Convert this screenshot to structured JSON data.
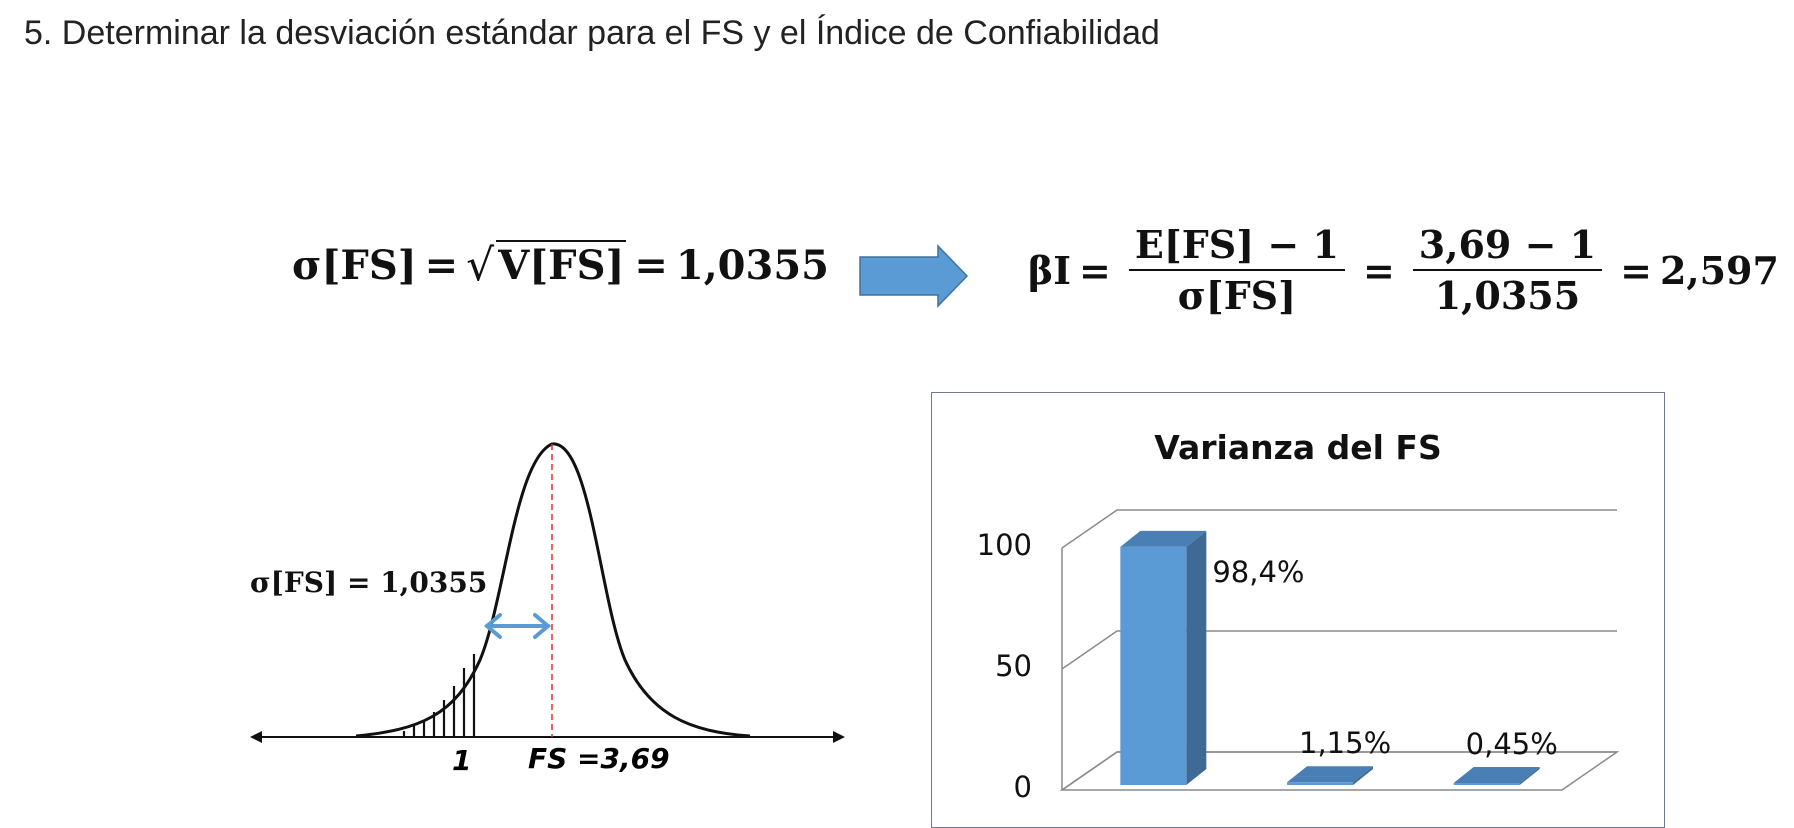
{
  "heading": "5. Determinar la desviación estándar para el FS y el Índice de Confiabilidad",
  "equation_sigma": {
    "lhs": "σ[FS]",
    "eq": "=",
    "radicand": "V[FS]",
    "eq2": "=",
    "result": "1,0355"
  },
  "equation_beta": {
    "lhs": "βI",
    "eq1": "=",
    "frac1_num": "E[FS] − 1",
    "frac1_den": "σ[FS]",
    "eq2": "=",
    "frac2_num": "3,69 − 1",
    "frac2_den": "1,0355",
    "eq3": "=",
    "result": "2,597"
  },
  "bell_curve": {
    "sigma_label": "σ[FS] = 1,0355",
    "x_label_1": "1",
    "x_label_fs": "FS =3,69"
  },
  "colors": {
    "arrow_fill": "#5b9bd5",
    "arrow_stroke": "#41719c",
    "bar_front": "#5b9bd5",
    "bar_side": "#3e6a95",
    "bar_top": "#4a7fb5",
    "mean_line": "#e03030"
  },
  "chart_data": {
    "type": "bar",
    "title": "Varianza del FS",
    "categories": [
      "",
      "",
      ""
    ],
    "values": [
      98.4,
      1.15,
      0.45
    ],
    "data_labels": [
      "98,4%",
      "1,15%",
      "0,45%"
    ],
    "y_ticks": [
      "0",
      "50",
      "100"
    ],
    "ylim": [
      0,
      100
    ],
    "grid": true,
    "style": "3d-column"
  }
}
